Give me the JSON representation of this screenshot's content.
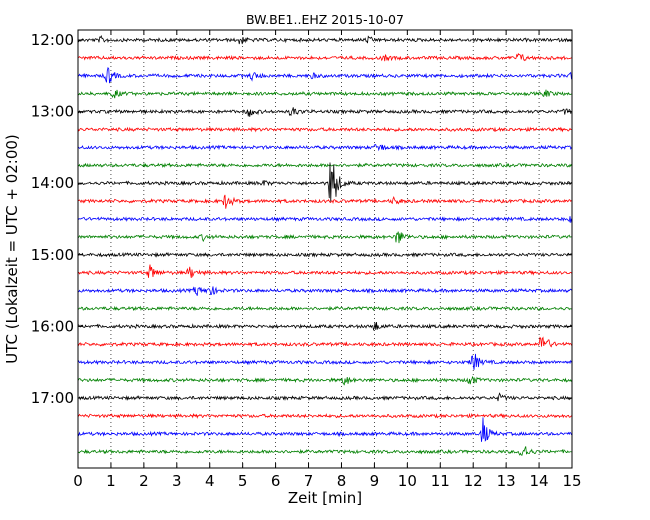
{
  "chart_data": {
    "type": "line",
    "title": "BW.BE1..EHZ 2015-10-07",
    "xlabel": "Zeit  [min]",
    "ylabel": "UTC (Lokalzeit = UTC + 02:00)",
    "xlim": [
      0,
      15
    ],
    "x_ticks": [
      "0",
      "1",
      "2",
      "3",
      "4",
      "5",
      "6",
      "7",
      "8",
      "9",
      "10",
      "11",
      "12",
      "13",
      "14",
      "15"
    ],
    "y_ticks": [
      "12:00",
      "13:00",
      "14:00",
      "15:00",
      "16:00",
      "17:00"
    ],
    "grid": "vertical dotted at each minute",
    "start_time": "12:00",
    "end_time": "17:45",
    "trace_interval_minutes": 15,
    "colors": [
      "#000000",
      "#ff0000",
      "#0000ff",
      "#008000"
    ],
    "events": [
      {
        "row": 0,
        "x": 0.7,
        "amp": 0.15
      },
      {
        "row": 0,
        "x": 4.9,
        "amp": 0.3
      },
      {
        "row": 0,
        "x": 8.8,
        "amp": 0.15
      },
      {
        "row": 1,
        "x": 9.3,
        "amp": 0.15
      },
      {
        "row": 1,
        "x": 13.4,
        "amp": 0.3
      },
      {
        "row": 2,
        "x": 0.9,
        "amp": 0.6
      },
      {
        "row": 2,
        "x": 5.3,
        "amp": 0.25
      },
      {
        "row": 2,
        "x": 7.1,
        "amp": 0.15
      },
      {
        "row": 2,
        "x": 15.0,
        "amp": 0.25
      },
      {
        "row": 3,
        "x": 1.1,
        "amp": 0.25
      },
      {
        "row": 3,
        "x": 14.2,
        "amp": 0.2
      },
      {
        "row": 4,
        "x": 5.2,
        "amp": 0.3
      },
      {
        "row": 4,
        "x": 6.5,
        "amp": 0.3
      },
      {
        "row": 4,
        "x": 14.8,
        "amp": 0.15
      },
      {
        "row": 6,
        "x": 9.1,
        "amp": 0.3
      },
      {
        "row": 8,
        "x": 7.7,
        "amp": 2.2
      },
      {
        "row": 8,
        "x": 5.6,
        "amp": 0.15
      },
      {
        "row": 9,
        "x": 4.5,
        "amp": 0.5
      },
      {
        "row": 9,
        "x": 9.6,
        "amp": 0.2
      },
      {
        "row": 10,
        "x": 15.0,
        "amp": 0.25
      },
      {
        "row": 11,
        "x": 9.7,
        "amp": 0.5
      },
      {
        "row": 11,
        "x": 3.8,
        "amp": 0.15
      },
      {
        "row": 13,
        "x": 2.2,
        "amp": 0.45
      },
      {
        "row": 13,
        "x": 3.4,
        "amp": 0.35
      },
      {
        "row": 14,
        "x": 3.6,
        "amp": 0.3
      },
      {
        "row": 14,
        "x": 4.0,
        "amp": 0.35
      },
      {
        "row": 16,
        "x": 9.0,
        "amp": 0.3
      },
      {
        "row": 17,
        "x": 14.1,
        "amp": 0.8
      },
      {
        "row": 18,
        "x": 12.0,
        "amp": 0.7
      },
      {
        "row": 19,
        "x": 8.1,
        "amp": 0.3
      },
      {
        "row": 19,
        "x": 11.9,
        "amp": 0.35
      },
      {
        "row": 20,
        "x": 12.8,
        "amp": 0.2
      },
      {
        "row": 22,
        "x": 12.3,
        "amp": 0.9
      },
      {
        "row": 23,
        "x": 13.5,
        "amp": 0.6
      }
    ]
  }
}
